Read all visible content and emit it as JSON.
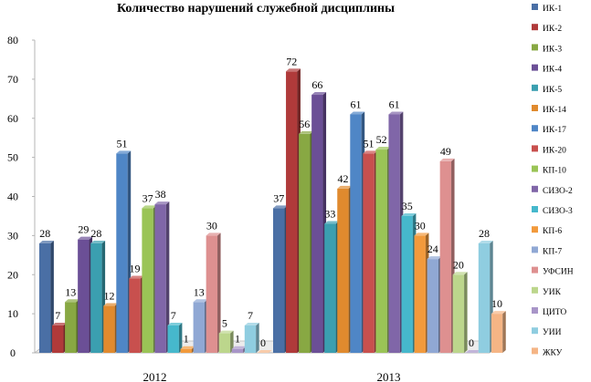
{
  "chart_data": {
    "type": "bar",
    "title": "Количество  нарушений служебной дисциплины",
    "categories": [
      "2012",
      "2013"
    ],
    "ylim": [
      0,
      80
    ],
    "yticks": [
      0,
      10,
      20,
      30,
      40,
      50,
      60,
      70,
      80
    ],
    "grid": false,
    "legend_position": "right",
    "series": [
      {
        "name": "ИК-1",
        "color": "#4a6fa5",
        "values": [
          28,
          37
        ]
      },
      {
        "name": "ИК-2",
        "color": "#b03a3a",
        "values": [
          7,
          72
        ]
      },
      {
        "name": "ИК-3",
        "color": "#88a843",
        "values": [
          13,
          56
        ]
      },
      {
        "name": "ИК-4",
        "color": "#6b4f96",
        "values": [
          29,
          66
        ]
      },
      {
        "name": "ИК-5",
        "color": "#3b9fb0",
        "values": [
          28,
          33
        ]
      },
      {
        "name": "ИК-14",
        "color": "#e08a2e",
        "values": [
          12,
          42
        ]
      },
      {
        "name": "ИК-17",
        "color": "#4f86c6",
        "values": [
          51,
          61
        ]
      },
      {
        "name": "ИК-20",
        "color": "#c8504e",
        "values": [
          19,
          51
        ]
      },
      {
        "name": "КП-10",
        "color": "#9ac456",
        "values": [
          37,
          52
        ]
      },
      {
        "name": "СИЗО-2",
        "color": "#8066a8",
        "values": [
          38,
          61
        ]
      },
      {
        "name": "СИЗО-3",
        "color": "#46b8cc",
        "values": [
          7,
          35
        ]
      },
      {
        "name": "КП-6",
        "color": "#f29a3c",
        "values": [
          1,
          30
        ]
      },
      {
        "name": "КП-7",
        "color": "#90a8d4",
        "values": [
          13,
          24
        ]
      },
      {
        "name": "УФСИН",
        "color": "#de9090",
        "values": [
          30,
          49
        ]
      },
      {
        "name": "УИК",
        "color": "#bcd68c",
        "values": [
          5,
          20
        ]
      },
      {
        "name": "ЦИТО",
        "color": "#a895c8",
        "values": [
          1,
          0
        ]
      },
      {
        "name": "УИИ",
        "color": "#8fcde0",
        "values": [
          7,
          28
        ]
      },
      {
        "name": "ЖКУ",
        "color": "#f5b585",
        "values": [
          0,
          10
        ]
      }
    ]
  }
}
